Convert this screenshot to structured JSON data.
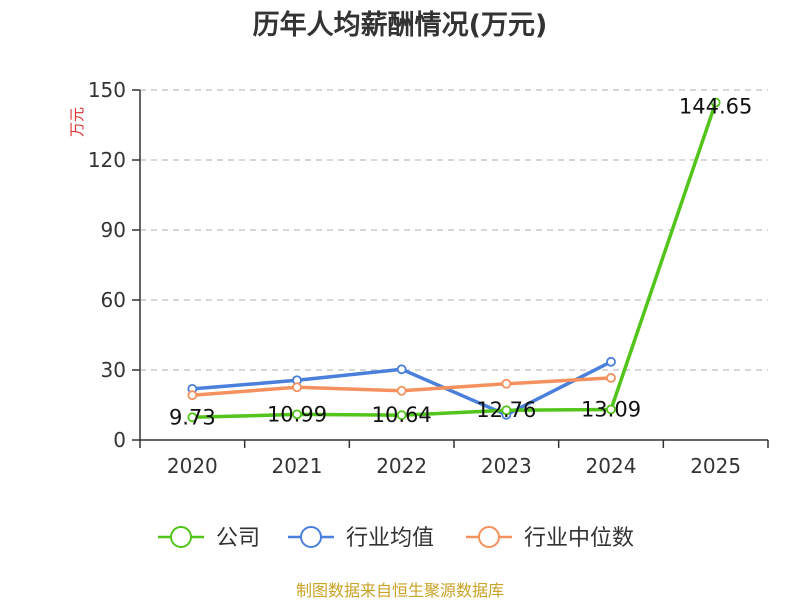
{
  "chart_data": {
    "type": "line",
    "title": "历年人均薪酬情况(万元)",
    "ylabel": "万元",
    "xlabel": "",
    "categories": [
      "2020",
      "2021",
      "2022",
      "2023",
      "2024",
      "2025"
    ],
    "ylim": [
      0,
      150
    ],
    "yticks": [
      0,
      30,
      60,
      90,
      120,
      150
    ],
    "grid": true,
    "legend_position": "bottom",
    "series": [
      {
        "name": "公司",
        "color": "#52c41a",
        "values": [
          9.73,
          10.99,
          10.64,
          12.76,
          13.09,
          144.65
        ],
        "labels": [
          "9.73",
          "10.99",
          "10.64",
          "12.76",
          "13.09",
          "144.65"
        ]
      },
      {
        "name": "行业均值",
        "color": "#4a7fdc",
        "values": [
          21.9,
          25.6,
          30.3,
          10.8,
          33.5,
          null
        ]
      },
      {
        "name": "行业中位数",
        "color": "#f4915e",
        "values": [
          19.2,
          22.6,
          21.1,
          24.1,
          26.6,
          null
        ]
      }
    ]
  },
  "footer": {
    "source": "制图数据来自恒生聚源数据库"
  }
}
